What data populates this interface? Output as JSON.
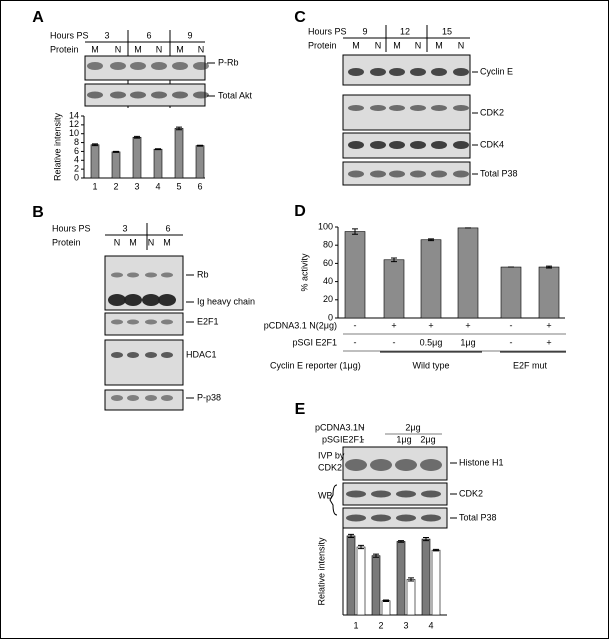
{
  "panels": {
    "A": {
      "label": "A",
      "hours_label": "Hours PS",
      "hours": [
        "3",
        "6",
        "9"
      ],
      "protein_label": "Protein",
      "protein": [
        "M",
        "N",
        "M",
        "N",
        "M",
        "N"
      ],
      "blots": [
        "P-Rb",
        "Total Akt"
      ]
    },
    "B": {
      "label": "B",
      "hours_label": "Hours PS",
      "hours": [
        "3",
        "6"
      ],
      "protein_label": "Protein",
      "protein": [
        "N",
        "M",
        "N",
        "M"
      ],
      "blots": [
        "Rb",
        "Ig heavy chain",
        "E2F1",
        "HDAC1",
        "P-p38"
      ]
    },
    "C": {
      "label": "C",
      "hours_label": "Hours PS",
      "hours": [
        "9",
        "12",
        "15"
      ],
      "protein_label": "Protein",
      "protein": [
        "M",
        "N",
        "M",
        "N",
        "M",
        "N"
      ],
      "blots": [
        "Cyclin E",
        "CDK2",
        "CDK4",
        "Total P38"
      ]
    },
    "D": {
      "label": "D",
      "rows": [
        {
          "label": "pCDNA3.1 N(2μg)",
          "cells": [
            "-",
            "+",
            "+",
            "+",
            "-",
            "+"
          ]
        },
        {
          "label": "pSGI E2F1",
          "cells": [
            "-",
            "-",
            "0.5μg",
            "1μg",
            "-",
            "+"
          ]
        }
      ],
      "reporter_label": "Cyclin E reporter (1μg)",
      "groups": [
        "Wild type",
        "E2F mut"
      ]
    },
    "E": {
      "label": "E",
      "rows": [
        {
          "label": "pCDNA3.1N",
          "cells": [
            "-",
            "2μg"
          ]
        },
        {
          "label": "pSGIE2F1",
          "cells": [
            "-",
            "1μg",
            "2μg"
          ]
        }
      ],
      "ivp_label": [
        "IVP by",
        "CDK2"
      ],
      "wb_label": "WB",
      "blots": [
        "Histone H1",
        "CDK2",
        "Total P38"
      ]
    }
  },
  "chart_data": [
    {
      "type": "bar",
      "y_label": "Relative intensity",
      "categories": [
        "1",
        "2",
        "3",
        "4",
        "5",
        "6"
      ],
      "values": [
        7.5,
        5.9,
        9.2,
        6.5,
        11.2,
        7.3
      ],
      "errors": [
        0.2,
        0.1,
        0.2,
        0.1,
        0.3,
        0.1
      ],
      "ylim": [
        0,
        14
      ],
      "yticks": [
        0,
        2,
        4,
        6,
        8,
        10,
        12,
        14
      ],
      "color": "#8c8c8c"
    },
    {
      "type": "bar",
      "y_label": "% activity",
      "values": [
        95,
        64,
        86,
        99,
        56,
        56
      ],
      "errors": [
        3,
        2,
        1,
        0,
        0,
        1
      ],
      "ylim": [
        0,
        100
      ],
      "yticks": [
        0,
        20,
        40,
        60,
        80,
        100
      ],
      "color": "#8c8c8c"
    },
    {
      "type": "bar",
      "y_label": "Relative intensity",
      "categories": [
        "1",
        "2",
        "3",
        "4"
      ],
      "series": [
        {
          "color": "#7a7a7a",
          "values": [
            1.0,
            0.75,
            0.93,
            0.96
          ],
          "errors": [
            0.02,
            0.02,
            0.01,
            0.02
          ]
        },
        {
          "color": "#ffffff",
          "values": [
            0.86,
            0.18,
            0.45,
            0.82
          ],
          "errors": [
            0.02,
            0.01,
            0.02,
            0.01
          ]
        }
      ],
      "ylim": [
        0,
        1.1
      ]
    }
  ]
}
